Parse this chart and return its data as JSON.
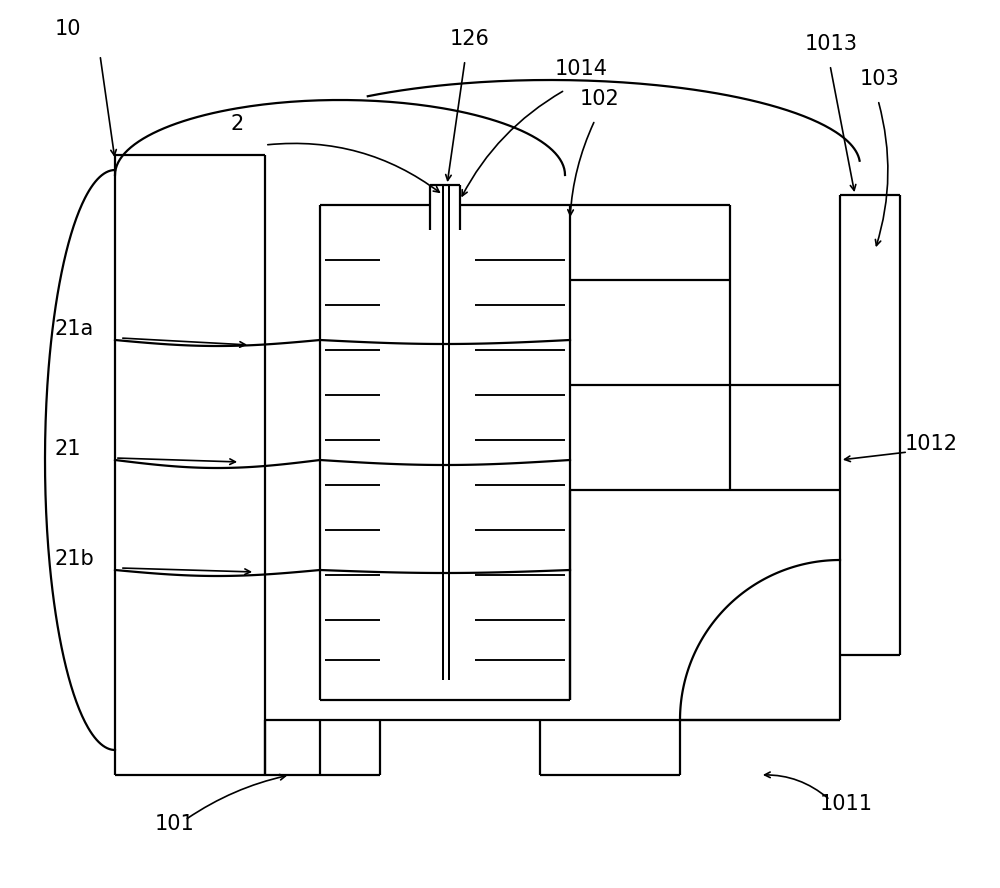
{
  "bg_color": "#ffffff",
  "lc": "#000000",
  "lw": 1.6,
  "fig_width": 10.0,
  "fig_height": 8.88
}
